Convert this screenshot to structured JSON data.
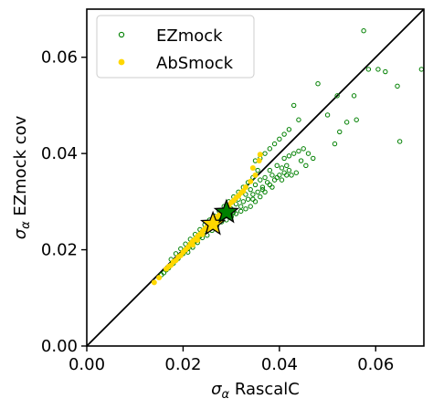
{
  "chart_data": {
    "type": "scatter",
    "title": "",
    "xlabel_symbol": "σ",
    "xlabel_sub": "α",
    "xlabel_text": "RascalC",
    "ylabel_symbol": "σ",
    "ylabel_sub": "α",
    "ylabel_text": "EZmock cov",
    "xlim": [
      0.0,
      0.07
    ],
    "ylim": [
      0.0,
      0.07
    ],
    "xticks": [
      0.0,
      0.02,
      0.04,
      0.06
    ],
    "yticks": [
      0.0,
      0.02,
      0.04,
      0.06
    ],
    "xtick_labels": [
      "0.00",
      "0.02",
      "0.04",
      "0.06"
    ],
    "ytick_labels": [
      "0.00",
      "0.02",
      "0.04",
      "0.06"
    ],
    "grid": false,
    "legend_position": "top-left",
    "reference_line": {
      "x": [
        0.0,
        0.07
      ],
      "y": [
        0.0,
        0.07
      ],
      "color": "#000000"
    },
    "series": [
      {
        "name": "EZmock",
        "marker": "open-circle",
        "color": "#008000",
        "points": [
          [
            0.0575,
            0.0655
          ],
          [
            0.0605,
            0.0575
          ],
          [
            0.0695,
            0.0575
          ],
          [
            0.0645,
            0.054
          ],
          [
            0.065,
            0.0425
          ],
          [
            0.0585,
            0.0575
          ],
          [
            0.062,
            0.057
          ],
          [
            0.048,
            0.0545
          ],
          [
            0.052,
            0.052
          ],
          [
            0.0555,
            0.052
          ],
          [
            0.056,
            0.047
          ],
          [
            0.054,
            0.0465
          ],
          [
            0.0515,
            0.042
          ],
          [
            0.0525,
            0.0445
          ],
          [
            0.05,
            0.048
          ],
          [
            0.043,
            0.05
          ],
          [
            0.044,
            0.047
          ],
          [
            0.042,
            0.045
          ],
          [
            0.041,
            0.044
          ],
          [
            0.04,
            0.043
          ],
          [
            0.039,
            0.042
          ],
          [
            0.038,
            0.041
          ],
          [
            0.037,
            0.04
          ],
          [
            0.036,
            0.039
          ],
          [
            0.035,
            0.0385
          ],
          [
            0.041,
            0.039
          ],
          [
            0.042,
            0.0395
          ],
          [
            0.043,
            0.04
          ],
          [
            0.044,
            0.0405
          ],
          [
            0.0395,
            0.0375
          ],
          [
            0.0405,
            0.037
          ],
          [
            0.0415,
            0.0375
          ],
          [
            0.038,
            0.0365
          ],
          [
            0.0385,
            0.0355
          ],
          [
            0.037,
            0.035
          ],
          [
            0.036,
            0.0345
          ],
          [
            0.0365,
            0.033
          ],
          [
            0.035,
            0.0335
          ],
          [
            0.034,
            0.0325
          ],
          [
            0.0345,
            0.0315
          ],
          [
            0.033,
            0.0315
          ],
          [
            0.0335,
            0.0305
          ],
          [
            0.0325,
            0.03
          ],
          [
            0.0315,
            0.0305
          ],
          [
            0.032,
            0.029
          ],
          [
            0.031,
            0.0295
          ],
          [
            0.03,
            0.0285
          ],
          [
            0.0305,
            0.0278
          ],
          [
            0.0295,
            0.028
          ],
          [
            0.029,
            0.0272
          ],
          [
            0.0285,
            0.0275
          ],
          [
            0.028,
            0.0265
          ],
          [
            0.0275,
            0.0268
          ],
          [
            0.027,
            0.026
          ],
          [
            0.0265,
            0.0255
          ],
          [
            0.026,
            0.025
          ],
          [
            0.0255,
            0.0245
          ],
          [
            0.025,
            0.024
          ],
          [
            0.0245,
            0.0238
          ],
          [
            0.024,
            0.0232
          ],
          [
            0.0235,
            0.0228
          ],
          [
            0.023,
            0.0222
          ],
          [
            0.0225,
            0.0218
          ],
          [
            0.022,
            0.0212
          ],
          [
            0.0215,
            0.0208
          ],
          [
            0.021,
            0.0202
          ],
          [
            0.0205,
            0.0198
          ],
          [
            0.02,
            0.0192
          ],
          [
            0.0195,
            0.0188
          ],
          [
            0.019,
            0.0182
          ],
          [
            0.0185,
            0.0178
          ],
          [
            0.018,
            0.0172
          ],
          [
            0.0175,
            0.0168
          ],
          [
            0.017,
            0.0162
          ],
          [
            0.0165,
            0.0158
          ],
          [
            0.016,
            0.0152
          ],
          [
            0.0155,
            0.0148
          ],
          [
            0.015,
            0.0142
          ],
          [
            0.03,
            0.027
          ],
          [
            0.031,
            0.0275
          ],
          [
            0.032,
            0.028
          ],
          [
            0.033,
            0.0285
          ],
          [
            0.034,
            0.029
          ],
          [
            0.035,
            0.03
          ],
          [
            0.036,
            0.031
          ],
          [
            0.037,
            0.032
          ],
          [
            0.038,
            0.0335
          ],
          [
            0.039,
            0.0345
          ],
          [
            0.04,
            0.0355
          ],
          [
            0.041,
            0.036
          ],
          [
            0.042,
            0.0365
          ],
          [
            0.0355,
            0.0365
          ],
          [
            0.0345,
            0.035
          ],
          [
            0.0335,
            0.034
          ],
          [
            0.0325,
            0.033
          ],
          [
            0.0315,
            0.032
          ],
          [
            0.0305,
            0.031
          ],
          [
            0.0295,
            0.03
          ],
          [
            0.0285,
            0.029
          ],
          [
            0.0275,
            0.028
          ],
          [
            0.0265,
            0.027
          ],
          [
            0.0255,
            0.0262
          ],
          [
            0.0245,
            0.0252
          ],
          [
            0.0235,
            0.0242
          ],
          [
            0.0225,
            0.0232
          ],
          [
            0.0215,
            0.0222
          ],
          [
            0.0205,
            0.0212
          ],
          [
            0.0195,
            0.0202
          ],
          [
            0.0185,
            0.0192
          ],
          [
            0.0175,
            0.018
          ],
          [
            0.025,
            0.023
          ],
          [
            0.024,
            0.0225
          ],
          [
            0.023,
            0.0215
          ],
          [
            0.022,
            0.0205
          ],
          [
            0.021,
            0.0195
          ],
          [
            0.026,
            0.024
          ],
          [
            0.027,
            0.025
          ],
          [
            0.028,
            0.0258
          ],
          [
            0.029,
            0.0262
          ],
          [
            0.03,
            0.0268
          ],
          [
            0.045,
            0.041
          ],
          [
            0.046,
            0.04
          ],
          [
            0.0445,
            0.0385
          ],
          [
            0.047,
            0.039
          ],
          [
            0.0435,
            0.036
          ],
          [
            0.0425,
            0.0355
          ],
          [
            0.0455,
            0.0375
          ],
          [
            0.0375,
            0.034
          ],
          [
            0.0365,
            0.0325
          ],
          [
            0.0355,
            0.032
          ],
          [
            0.0395,
            0.035
          ],
          [
            0.0405,
            0.0345
          ],
          [
            0.0415,
            0.0355
          ],
          [
            0.0385,
            0.033
          ],
          [
            0.0345,
            0.0305
          ]
        ]
      },
      {
        "name": "AbSmock",
        "marker": "filled-circle",
        "color": "#FFD700",
        "points": [
          [
            0.014,
            0.0132
          ],
          [
            0.015,
            0.0142
          ],
          [
            0.0165,
            0.016
          ],
          [
            0.0175,
            0.0168
          ],
          [
            0.0185,
            0.0178
          ],
          [
            0.0195,
            0.0188
          ],
          [
            0.02,
            0.0195
          ],
          [
            0.0205,
            0.02
          ],
          [
            0.021,
            0.0205
          ],
          [
            0.0215,
            0.0212
          ],
          [
            0.022,
            0.0218
          ],
          [
            0.0225,
            0.0222
          ],
          [
            0.023,
            0.0228
          ],
          [
            0.0235,
            0.0232
          ],
          [
            0.024,
            0.0238
          ],
          [
            0.0245,
            0.0243
          ],
          [
            0.025,
            0.0248
          ],
          [
            0.0255,
            0.0252
          ],
          [
            0.026,
            0.0258
          ],
          [
            0.0265,
            0.0262
          ],
          [
            0.027,
            0.0268
          ],
          [
            0.0275,
            0.0272
          ],
          [
            0.028,
            0.0278
          ],
          [
            0.0285,
            0.0282
          ],
          [
            0.029,
            0.0288
          ],
          [
            0.0295,
            0.0292
          ],
          [
            0.03,
            0.0298
          ],
          [
            0.0305,
            0.0302
          ],
          [
            0.031,
            0.0308
          ],
          [
            0.0315,
            0.0312
          ],
          [
            0.032,
            0.0318
          ],
          [
            0.0325,
            0.0322
          ],
          [
            0.033,
            0.033
          ],
          [
            0.034,
            0.0342
          ],
          [
            0.035,
            0.0355
          ],
          [
            0.036,
            0.0398
          ],
          [
            0.0358,
            0.0385
          ],
          [
            0.0345,
            0.037
          ],
          [
            0.023,
            0.022
          ],
          [
            0.024,
            0.0232
          ],
          [
            0.019,
            0.0185
          ],
          [
            0.018,
            0.0175
          ],
          [
            0.017,
            0.0165
          ],
          [
            0.022,
            0.021
          ],
          [
            0.026,
            0.025
          ]
        ]
      }
    ],
    "stars": [
      {
        "x": 0.0262,
        "y": 0.0253,
        "color": "#FFD700"
      },
      {
        "x": 0.029,
        "y": 0.0278,
        "color": "#008000"
      }
    ]
  }
}
